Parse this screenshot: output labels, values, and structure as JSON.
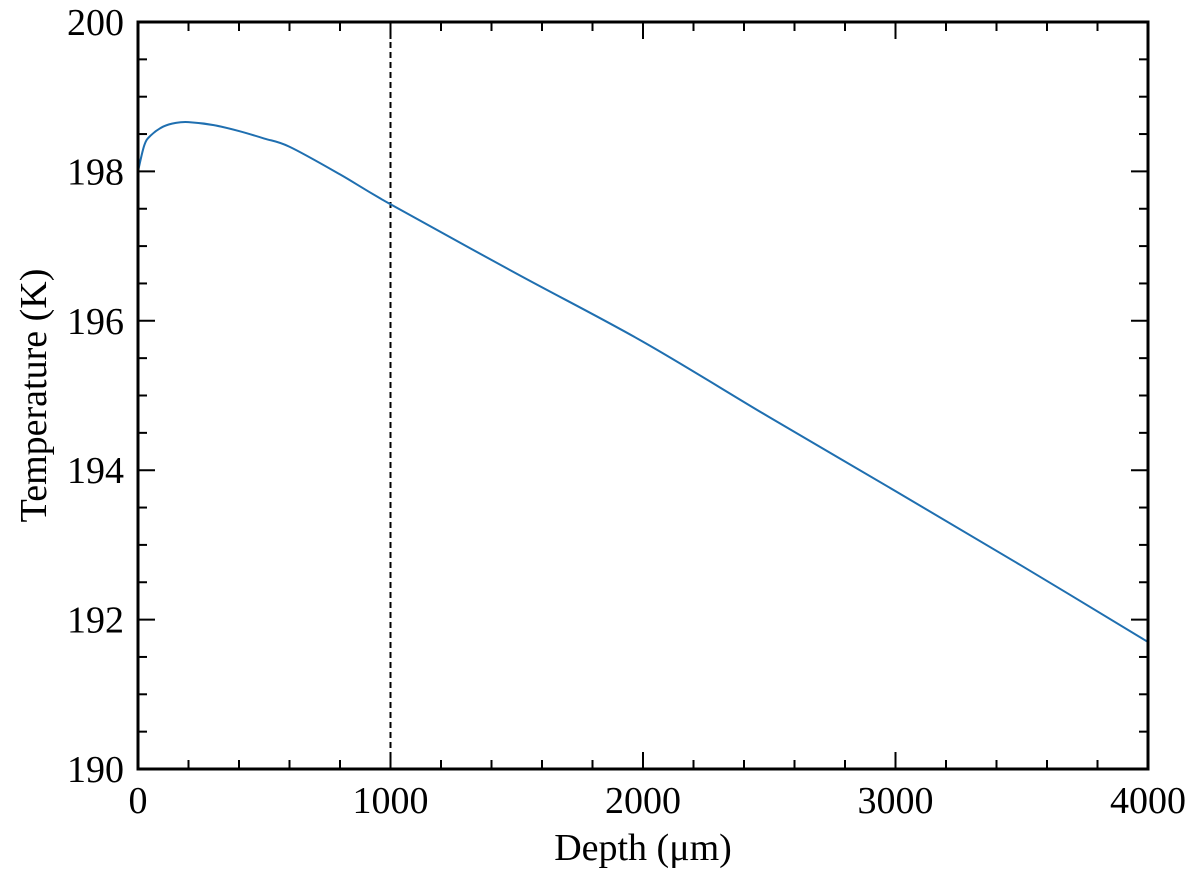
{
  "chart_data": {
    "type": "line",
    "title": "",
    "xlabel": "Depth (μm)",
    "ylabel": "Temperature (K)",
    "xlim": [
      0,
      4000
    ],
    "ylim": [
      190,
      200
    ],
    "xticks": [
      0,
      1000,
      2000,
      3000,
      4000
    ],
    "xtick_labels": [
      "0",
      "1000",
      "2000",
      "3000",
      "4000"
    ],
    "xminor_step": 200,
    "yticks": [
      190,
      192,
      194,
      196,
      198,
      200
    ],
    "ytick_labels": [
      "190",
      "192",
      "194",
      "196",
      "198",
      "200"
    ],
    "yminor_step": 0.5,
    "grid": false,
    "legend": "none",
    "series": [
      {
        "color": "#1f6fb0",
        "x": [
          0,
          25,
          50,
          100,
          150,
          200,
          300,
          400,
          500,
          600,
          800,
          1000,
          1500,
          2000,
          2500,
          3000,
          3500,
          4000
        ],
        "y": [
          198.0,
          198.35,
          198.48,
          198.6,
          198.65,
          198.66,
          198.62,
          198.54,
          198.44,
          198.33,
          197.96,
          197.56,
          196.63,
          195.72,
          194.71,
          193.72,
          192.72,
          191.7
        ]
      }
    ],
    "reference_lines": [
      {
        "orientation": "vertical",
        "x": 1000,
        "style": "dashed",
        "color": "#000000"
      }
    ]
  }
}
